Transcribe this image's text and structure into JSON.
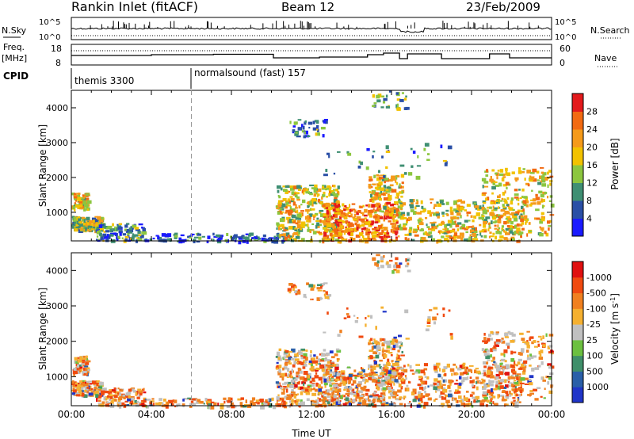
{
  "header": {
    "title": "Rankin Inlet (fitACF)",
    "beam": "Beam 12",
    "date": "23/Feb/2009"
  },
  "noise_panel": {
    "left_label": "N.Sky",
    "right_label": "N.Search",
    "left_ticks": [
      "10^5",
      "10^0"
    ],
    "right_ticks": [
      "10^5",
      "10^0"
    ]
  },
  "freq_panel": {
    "left_label_1": "Freq.",
    "left_label_2": "[MHz]",
    "right_label": "Nave",
    "left_ticks": [
      "18",
      "8"
    ],
    "right_ticks": [
      "60",
      "0"
    ]
  },
  "cpid_panel": {
    "label": "CPID",
    "segments": [
      {
        "start_hour": 0,
        "text": "themis 3300"
      },
      {
        "start_hour": 6,
        "text": "normalsound (fast) 157"
      }
    ]
  },
  "chart_data": [
    {
      "type": "heatmap",
      "panel": "power",
      "xlabel": "",
      "ylabel": "Slant Range [km]",
      "x_range_hours": [
        0,
        24
      ],
      "ylim": [
        180,
        4500
      ],
      "yticks": [
        1000,
        2000,
        3000,
        4000
      ],
      "colorbar": {
        "label": "Power [dB]",
        "tick_labels": [
          "4",
          "8",
          "12",
          "16",
          "20",
          "24",
          "28"
        ],
        "colors": [
          "#1a1aff",
          "#2a4fa6",
          "#3f8f73",
          "#8cc63f",
          "#f2c200",
          "#f59a1a",
          "#f26a12",
          "#e31a1c"
        ]
      }
    },
    {
      "type": "heatmap",
      "panel": "velocity",
      "xlabel": "Time UT",
      "ylabel": "Slant Range [km]",
      "x_range_hours": [
        0,
        24
      ],
      "xtick_labels": [
        "00:00",
        "04:00",
        "08:00",
        "12:00",
        "16:00",
        "20:00",
        "00:00"
      ],
      "ylim": [
        180,
        4500
      ],
      "yticks": [
        1000,
        2000,
        3000,
        4000
      ],
      "colorbar": {
        "label": "Velocity [m s",
        "label_sup": "-1",
        "label_tail": "]",
        "tick_labels": [
          "1000",
          "500",
          "100",
          "25",
          "-25",
          "-100",
          "-500",
          "-1000"
        ],
        "colors": [
          "#2035c8",
          "#2a5fa8",
          "#3f8f6a",
          "#6cc040",
          "#c0c0c0",
          "#f5b030",
          "#f08020",
          "#f04a10",
          "#e01010"
        ]
      }
    }
  ]
}
